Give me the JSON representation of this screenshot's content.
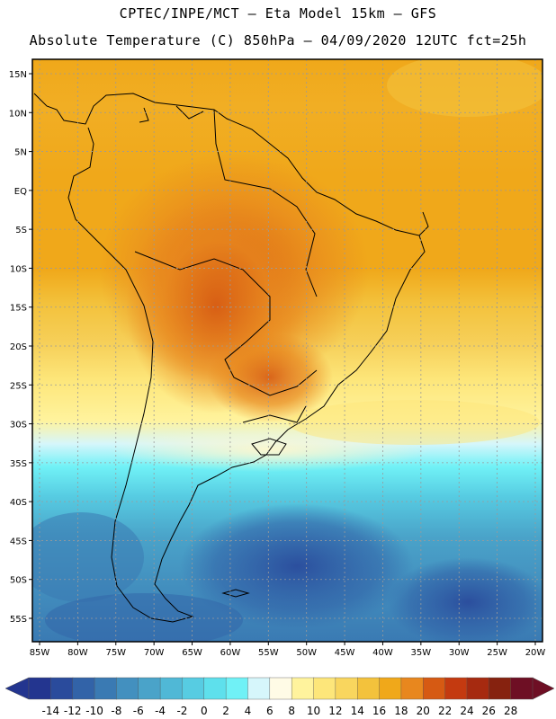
{
  "header": {
    "line1": "CPTEC/INPE/MCT –  Eta Model 15km – GFS",
    "line2": "Absolute Temperature (C) 850hPa – 04/09/2020 12UTC fct=25h"
  },
  "map": {
    "lat_labels": [
      {
        "text": "15N",
        "lat": 15
      },
      {
        "text": "10N",
        "lat": 10
      },
      {
        "text": "5N",
        "lat": 5
      },
      {
        "text": "EQ",
        "lat": 0
      },
      {
        "text": "5S",
        "lat": -5
      },
      {
        "text": "10S",
        "lat": -10
      },
      {
        "text": "15S",
        "lat": -15
      },
      {
        "text": "20S",
        "lat": -20
      },
      {
        "text": "25S",
        "lat": -25
      },
      {
        "text": "30S",
        "lat": -30
      },
      {
        "text": "35S",
        "lat": -35
      },
      {
        "text": "40S",
        "lat": -40
      },
      {
        "text": "45S",
        "lat": -45
      },
      {
        "text": "50S",
        "lat": -50
      },
      {
        "text": "55S",
        "lat": -55
      }
    ],
    "lon_labels": [
      {
        "text": "85W",
        "lon": -85
      },
      {
        "text": "80W",
        "lon": -80
      },
      {
        "text": "75W",
        "lon": -75
      },
      {
        "text": "70W",
        "lon": -70
      },
      {
        "text": "65W",
        "lon": -65
      },
      {
        "text": "60W",
        "lon": -60
      },
      {
        "text": "55W",
        "lon": -55
      },
      {
        "text": "50W",
        "lon": -50
      },
      {
        "text": "45W",
        "lon": -45
      },
      {
        "text": "40W",
        "lon": -40
      },
      {
        "text": "35W",
        "lon": -35
      },
      {
        "text": "30W",
        "lon": -30
      },
      {
        "text": "25W",
        "lon": -25
      },
      {
        "text": "20W",
        "lon": -20
      }
    ]
  },
  "colorbar": {
    "labels": [
      "-14",
      "-12",
      "-10",
      "-8",
      "-6",
      "-4",
      "-2",
      "0",
      "2",
      "4",
      "6",
      "8",
      "10",
      "12",
      "14",
      "16",
      "18",
      "20",
      "22",
      "24",
      "26",
      "28"
    ],
    "under_color": "#23358f",
    "over_color": "#6e0f24",
    "colors": [
      "#23358f",
      "#2a4b9c",
      "#3263a8",
      "#3a7ab3",
      "#4390bf",
      "#4aa3c9",
      "#50b8d6",
      "#57cce2",
      "#5ee0ec",
      "#70f1f6",
      "#d6f6fb",
      "#fffbe6",
      "#fff39d",
      "#fde67a",
      "#f9d65e",
      "#f3c23c",
      "#f0a81a",
      "#e8871e",
      "#d65a13",
      "#c43a10",
      "#a62a10",
      "#86220f",
      "#6e0f24"
    ]
  }
}
